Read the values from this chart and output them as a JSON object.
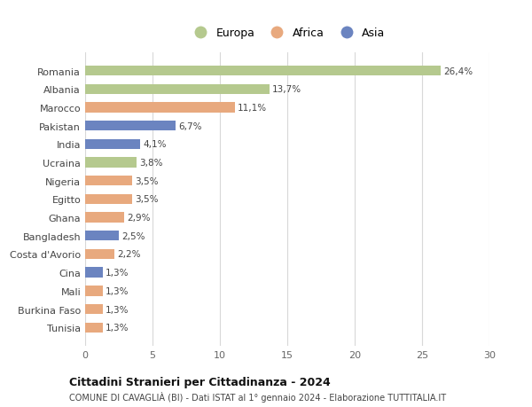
{
  "countries": [
    "Romania",
    "Albania",
    "Marocco",
    "Pakistan",
    "India",
    "Ucraina",
    "Nigeria",
    "Egitto",
    "Ghana",
    "Bangladesh",
    "Costa d'Avorio",
    "Cina",
    "Mali",
    "Burkina Faso",
    "Tunisia"
  ],
  "values": [
    26.4,
    13.7,
    11.1,
    6.7,
    4.1,
    3.8,
    3.5,
    3.5,
    2.9,
    2.5,
    2.2,
    1.3,
    1.3,
    1.3,
    1.3
  ],
  "labels": [
    "26,4%",
    "13,7%",
    "11,1%",
    "6,7%",
    "4,1%",
    "3,8%",
    "3,5%",
    "3,5%",
    "2,9%",
    "2,5%",
    "2,2%",
    "1,3%",
    "1,3%",
    "1,3%",
    "1,3%"
  ],
  "continents": [
    "Europa",
    "Europa",
    "Africa",
    "Asia",
    "Asia",
    "Europa",
    "Africa",
    "Africa",
    "Africa",
    "Asia",
    "Africa",
    "Asia",
    "Africa",
    "Africa",
    "Africa"
  ],
  "colors": {
    "Europa": "#b5c98e",
    "Africa": "#e8a97e",
    "Asia": "#6b84c0"
  },
  "xlim": [
    0,
    30
  ],
  "xticks": [
    0,
    5,
    10,
    15,
    20,
    25,
    30
  ],
  "title": "Cittadini Stranieri per Cittadinanza - 2024",
  "subtitle": "COMUNE DI CAVAGLIÀ (BI) - Dati ISTAT al 1° gennaio 2024 - Elaborazione TUTTITALIA.IT",
  "bg_color": "#ffffff",
  "grid_color": "#d8d8d8",
  "bar_height": 0.55
}
